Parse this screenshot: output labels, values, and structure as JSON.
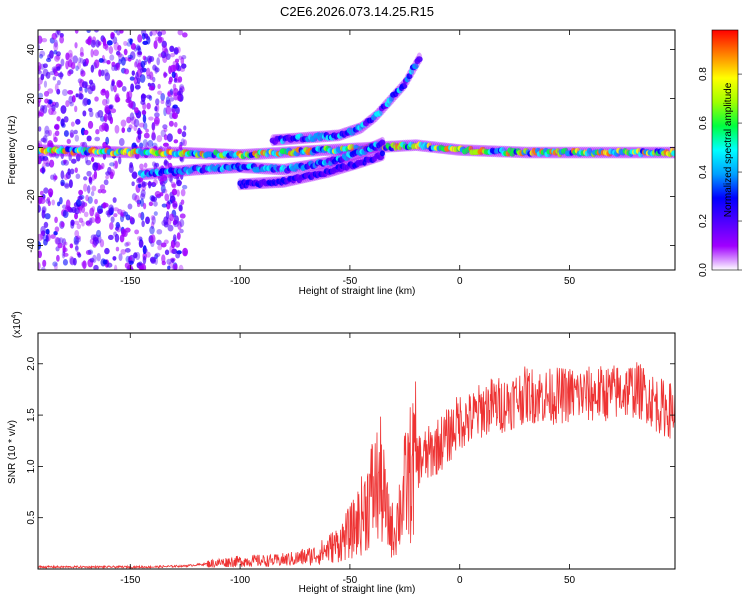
{
  "title": "C2E6.2026.073.14.25.R15",
  "colors": {
    "line": "#ee3333",
    "spectral_scale": [
      "#ffffff",
      "#a000ff",
      "#5000ff",
      "#0000ff",
      "#00a0ff",
      "#00ffff",
      "#00ff40",
      "#a0ff00",
      "#ffff00",
      "#ff8000",
      "#ff0000"
    ]
  },
  "chart_data": [
    {
      "type": "heatmap",
      "title": "C2E6.2026.073.14.25.R15",
      "xlabel": "Height of straight line (km)",
      "ylabel": "Frequency (Hz)",
      "xlim": [
        -192,
        98
      ],
      "ylim": [
        -50,
        48
      ],
      "x_ticks": [
        -150,
        -100,
        -50,
        0,
        50
      ],
      "y_ticks": [
        -40,
        -20,
        0,
        20,
        40
      ],
      "colorbar": {
        "label": "Normalized spectral amplitude",
        "range": [
          0,
          0.98
        ],
        "ticks": [
          0.0,
          0.2,
          0.4,
          0.6,
          0.8
        ]
      },
      "features": [
        {
          "name": "noise_region",
          "x_range": [
            -192,
            -125
          ],
          "y_range": [
            -50,
            48
          ],
          "amplitude": 0.15
        },
        {
          "name": "main_band",
          "points": [
            [
              -192,
              -1
            ],
            [
              -150,
              -2
            ],
            [
              -130,
              -2
            ],
            [
              -100,
              -3
            ],
            [
              -80,
              -2
            ],
            [
              -60,
              -1
            ],
            [
              -40,
              0
            ],
            [
              -20,
              1
            ],
            [
              0,
              -1
            ],
            [
              30,
              -2
            ],
            [
              60,
              -2
            ],
            [
              98,
              -2
            ]
          ],
          "amplitude_range": [
            0.3,
            0.95
          ]
        },
        {
          "name": "lower_branch",
          "points": [
            [
              -145,
              -11
            ],
            [
              -120,
              -9
            ],
            [
              -100,
              -8
            ],
            [
              -80,
              -9
            ],
            [
              -60,
              -6
            ],
            [
              -45,
              -2
            ],
            [
              -35,
              2
            ]
          ],
          "amplitude_range": [
            0.2,
            0.55
          ]
        },
        {
          "name": "lowest_branch",
          "points": [
            [
              -100,
              -15
            ],
            [
              -80,
              -14
            ],
            [
              -60,
              -10
            ],
            [
              -45,
              -6
            ],
            [
              -35,
              -3
            ]
          ],
          "amplitude_range": [
            0.15,
            0.35
          ]
        },
        {
          "name": "upper_branch",
          "points": [
            [
              -85,
              3
            ],
            [
              -70,
              4
            ],
            [
              -55,
              5
            ],
            [
              -45,
              8
            ],
            [
              -38,
              13
            ],
            [
              -32,
              19
            ],
            [
              -25,
              26
            ],
            [
              -18,
              37
            ]
          ],
          "amplitude_range": [
            0.15,
            0.5
          ]
        }
      ]
    },
    {
      "type": "line",
      "xlabel": "Height of straight line (km)",
      "ylabel": "SNR (10 * v/v)",
      "y_multiplier": "(x10",
      "y_exponent": "4",
      "y_multiplier_close": ")",
      "xlim": [
        -192,
        98
      ],
      "ylim": [
        0,
        2.3
      ],
      "x_ticks": [
        -150,
        -100,
        -50,
        0,
        50
      ],
      "y_ticks": [
        0.5,
        1.0,
        1.5,
        2.0
      ],
      "y_tick_labels": [
        "0.5",
        "1.0",
        "1.5",
        "2.0"
      ],
      "series": [
        {
          "x": [
            -192,
            -180,
            -160,
            -140,
            -125,
            -115,
            -105,
            -95,
            -85,
            -75,
            -65,
            -55,
            -48,
            -44,
            -40,
            -36,
            -33,
            -30,
            -27,
            -24,
            -20,
            -15,
            -10,
            -5,
            0,
            5,
            10,
            15,
            20,
            30,
            40,
            50,
            60,
            70,
            80,
            85,
            90,
            95,
            98
          ],
          "y": [
            0.02,
            0.02,
            0.02,
            0.02,
            0.03,
            0.05,
            0.07,
            0.08,
            0.08,
            0.1,
            0.14,
            0.25,
            0.4,
            0.55,
            0.75,
            0.85,
            0.5,
            0.35,
            0.6,
            0.85,
            1.05,
            1.1,
            1.2,
            1.3,
            1.45,
            1.45,
            1.55,
            1.6,
            1.6,
            1.7,
            1.68,
            1.7,
            1.7,
            1.72,
            1.75,
            1.7,
            1.6,
            1.55,
            1.55
          ]
        }
      ]
    }
  ]
}
